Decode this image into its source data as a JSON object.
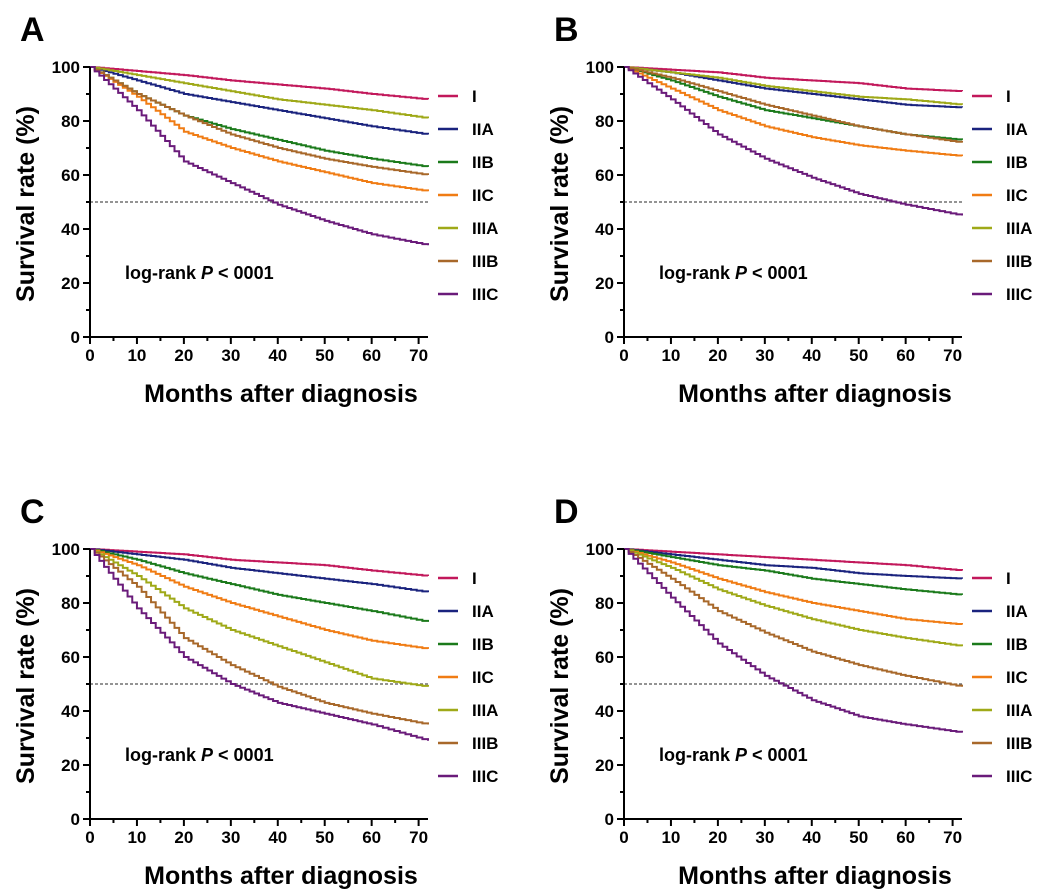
{
  "colors": {
    "I": "#c2185b",
    "IIA": "#1a237e",
    "IIB": "#1b7a1b",
    "IIC": "#f07c14",
    "IIIA": "#9fa918",
    "IIIB": "#a8682a",
    "IIIC": "#6a1b7a"
  },
  "chart_data": [
    {
      "panel": "A",
      "type": "line",
      "xlabel": "Months after diagnosis",
      "ylabel": "Survival rate (%)",
      "xlim": [
        0,
        72
      ],
      "ylim": [
        0,
        100
      ],
      "x_ticks": [
        0,
        10,
        20,
        30,
        40,
        50,
        60,
        70
      ],
      "y_ticks": [
        0,
        20,
        40,
        60,
        80,
        100
      ],
      "reference_line_y": 50,
      "annotation": {
        "prefix": "log-rank ",
        "italic": "P",
        "suffix": " < 0001"
      },
      "legend_position": "right",
      "x": [
        0,
        10,
        20,
        30,
        40,
        50,
        60,
        72
      ],
      "series": [
        {
          "name": "I",
          "values": [
            100,
            98.5,
            97,
            95,
            93.5,
            92,
            90,
            88
          ]
        },
        {
          "name": "IIA",
          "values": [
            100,
            95,
            90,
            87,
            84,
            81,
            78,
            75
          ]
        },
        {
          "name": "IIB",
          "values": [
            100,
            90,
            82,
            77,
            73,
            69,
            66,
            63
          ]
        },
        {
          "name": "IIC",
          "values": [
            100,
            89,
            76,
            70,
            65,
            61,
            57,
            54
          ]
        },
        {
          "name": "IIIA",
          "values": [
            100,
            97,
            94,
            91,
            88,
            86,
            84,
            81
          ]
        },
        {
          "name": "IIIB",
          "values": [
            100,
            90,
            82,
            75,
            70,
            66,
            63,
            60
          ]
        },
        {
          "name": "IIIC",
          "values": [
            100,
            84,
            65,
            57,
            49,
            43,
            38,
            34
          ]
        }
      ]
    },
    {
      "panel": "B",
      "type": "line",
      "xlabel": "Months after diagnosis",
      "ylabel": "Survival rate (%)",
      "xlim": [
        0,
        72
      ],
      "ylim": [
        0,
        100
      ],
      "x_ticks": [
        0,
        10,
        20,
        30,
        40,
        50,
        60,
        70
      ],
      "y_ticks": [
        0,
        20,
        40,
        60,
        80,
        100
      ],
      "reference_line_y": 50,
      "annotation": {
        "prefix": "log-rank ",
        "italic": "P",
        "suffix": " < 0001"
      },
      "legend_position": "right",
      "x": [
        0,
        10,
        20,
        30,
        40,
        50,
        60,
        72
      ],
      "series": [
        {
          "name": "I",
          "values": [
            100,
            99,
            98,
            96,
            95,
            94,
            92,
            91
          ]
        },
        {
          "name": "IIA",
          "values": [
            100,
            98,
            95,
            92,
            90,
            88,
            86,
            85
          ]
        },
        {
          "name": "IIB",
          "values": [
            100,
            95,
            89,
            84,
            81,
            78,
            75,
            73
          ]
        },
        {
          "name": "IIC",
          "values": [
            100,
            92,
            84,
            78,
            74,
            71,
            69,
            67
          ]
        },
        {
          "name": "IIIA",
          "values": [
            100,
            98,
            96,
            93,
            91,
            89,
            88,
            86
          ]
        },
        {
          "name": "IIIB",
          "values": [
            100,
            96,
            91,
            86,
            82,
            78,
            75,
            72
          ]
        },
        {
          "name": "IIIC",
          "values": [
            100,
            88,
            75,
            66,
            59,
            53,
            49,
            45
          ]
        }
      ]
    },
    {
      "panel": "C",
      "type": "line",
      "xlabel": "Months after diagnosis",
      "ylabel": "Survival rate (%)",
      "xlim": [
        0,
        72
      ],
      "ylim": [
        0,
        100
      ],
      "x_ticks": [
        0,
        10,
        20,
        30,
        40,
        50,
        60,
        70
      ],
      "y_ticks": [
        0,
        20,
        40,
        60,
        80,
        100
      ],
      "reference_line_y": 50,
      "annotation": {
        "prefix": "log-rank ",
        "italic": "P",
        "suffix": " < 0001"
      },
      "legend_position": "right",
      "x": [
        0,
        10,
        20,
        30,
        40,
        50,
        60,
        72
      ],
      "series": [
        {
          "name": "I",
          "values": [
            100,
            99,
            98,
            96,
            95,
            94,
            92,
            90
          ]
        },
        {
          "name": "IIA",
          "values": [
            100,
            98,
            96,
            93,
            91,
            89,
            87,
            84
          ]
        },
        {
          "name": "IIB",
          "values": [
            100,
            96,
            91,
            87,
            83,
            80,
            77,
            73
          ]
        },
        {
          "name": "IIC",
          "values": [
            100,
            94,
            86,
            80,
            75,
            70,
            66,
            63
          ]
        },
        {
          "name": "IIIA",
          "values": [
            100,
            90,
            78,
            70,
            64,
            58,
            52,
            49
          ]
        },
        {
          "name": "IIIB",
          "values": [
            100,
            86,
            67,
            57,
            49,
            43,
            39,
            35
          ]
        },
        {
          "name": "IIIC",
          "values": [
            100,
            78,
            60,
            50,
            43,
            39,
            35,
            29
          ]
        }
      ]
    },
    {
      "panel": "D",
      "type": "line",
      "xlabel": "Months after diagnosis",
      "ylabel": "Survival rate (%)",
      "xlim": [
        0,
        72
      ],
      "ylim": [
        0,
        100
      ],
      "x_ticks": [
        0,
        10,
        20,
        30,
        40,
        50,
        60,
        70
      ],
      "y_ticks": [
        0,
        20,
        40,
        60,
        80,
        100
      ],
      "reference_line_y": 50,
      "annotation": {
        "prefix": "log-rank ",
        "italic": "P",
        "suffix": " < 0001"
      },
      "legend_position": "right",
      "x": [
        0,
        10,
        20,
        30,
        40,
        50,
        60,
        72
      ],
      "series": [
        {
          "name": "I",
          "values": [
            100,
            99,
            98,
            97,
            96,
            95,
            94,
            92
          ]
        },
        {
          "name": "IIA",
          "values": [
            100,
            98,
            96,
            94,
            93,
            91,
            90,
            89
          ]
        },
        {
          "name": "IIB",
          "values": [
            100,
            97,
            94,
            92,
            89,
            87,
            85,
            83
          ]
        },
        {
          "name": "IIC",
          "values": [
            100,
            95,
            89,
            84,
            80,
            77,
            74,
            72
          ]
        },
        {
          "name": "IIIA",
          "values": [
            100,
            93,
            85,
            79,
            74,
            70,
            67,
            64
          ]
        },
        {
          "name": "IIIB",
          "values": [
            100,
            89,
            77,
            69,
            62,
            57,
            53,
            49
          ]
        },
        {
          "name": "IIIC",
          "values": [
            100,
            82,
            65,
            53,
            44,
            38,
            35,
            32
          ]
        }
      ]
    }
  ]
}
